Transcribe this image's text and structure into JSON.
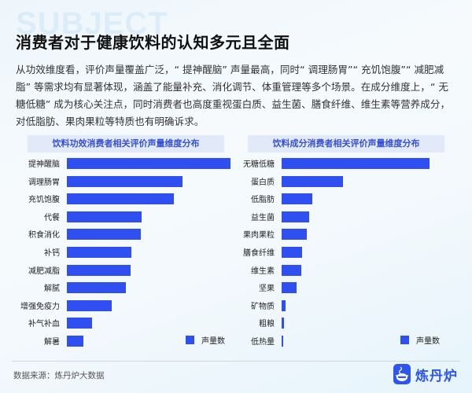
{
  "header": {
    "watermark": "SUBJECT",
    "title": "消费者对于健康饮料的认知多元且全面",
    "description": "从功效维度看，评价声量覆盖广泛，“ 提神醒脑” 声量最高，同时“ 调理肠胃”“ 充饥饱腹”“ 减肥减脂” 等需求均有显著体现，涵盖了能量补充、消化调节、体重管理等多个场景。在成分维度上，“ 无糖低糖” 成为核心关注点，同时消费者也高度重视蛋白质、益生菌、膳食纤维、维生素等营养成分，对低脂肪、果肉果粒等特质也有明确诉求。"
  },
  "colors": {
    "bar": "#2f4ff0",
    "panel_title_bg": "#e2e9f8",
    "panel_title_text": "#3550d6",
    "brand": "#2f55f0"
  },
  "chart_data": [
    {
      "type": "bar",
      "orientation": "horizontal",
      "title": "饮料功效消费者相关评价声量维度分布",
      "categories": [
        "提神醒脑",
        "调理肠胃",
        "充饥饱腹",
        "代餐",
        "积食消化",
        "补钙",
        "减肥减脂",
        "解腻",
        "增强免疫力",
        "补气补血",
        "解暑"
      ],
      "series": [
        {
          "name": "声量数",
          "values": [
            100,
            70.7,
            65.4,
            45.7,
            45.2,
            39.4,
            38.9,
            36.1,
            27.4,
            15.4,
            10.1
          ]
        }
      ],
      "xlabel": "",
      "ylabel": "",
      "grid": false,
      "legend_position": "bottom-right",
      "note": "values are relative (max = 100), no axis scale shown"
    },
    {
      "type": "bar",
      "orientation": "horizontal",
      "title": "饮料成分消费者相关评价声量维度分布",
      "categories": [
        "无糖低糖",
        "蛋白质",
        "低脂肪",
        "益生菌",
        "果肉果粒",
        "膳食纤维",
        "维生素",
        "坚果",
        "矿物质",
        "粗粮",
        "低热量"
      ],
      "series": [
        {
          "name": "声量数",
          "values": [
            100,
            41.5,
            20.7,
            18.6,
            17.0,
            13.8,
            13.3,
            10.1,
            2.7,
            1.6,
            0.5
          ]
        }
      ],
      "xlabel": "",
      "ylabel": "",
      "grid": false,
      "legend_position": "bottom-right",
      "note": "values are relative (max = 100), no axis scale shown"
    }
  ],
  "legend_label": "声量数",
  "footer": {
    "source": "数据来源：炼丹炉大数据",
    "brand_name": "炼丹炉",
    "brand_icon": "pot-logo-icon"
  }
}
